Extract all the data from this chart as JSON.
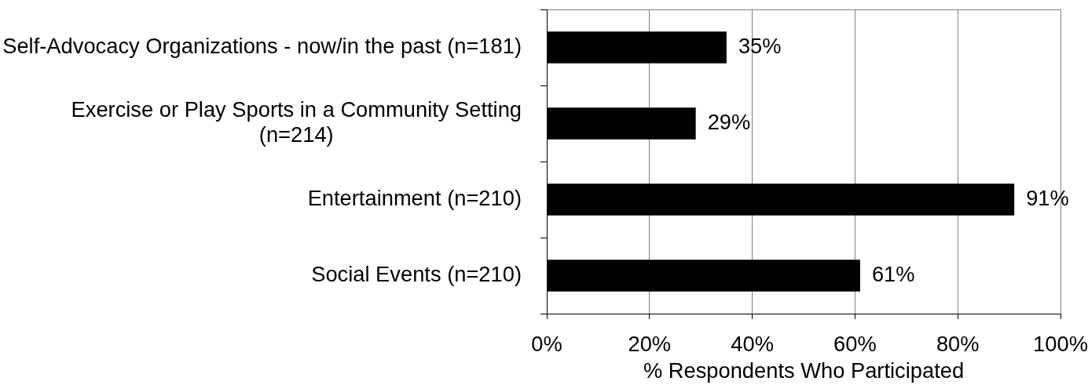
{
  "chart_data": {
    "type": "bar",
    "orientation": "horizontal",
    "categories": [
      "Self-Advocacy Organizations - now/in the past (n=181)",
      "Exercise or Play Sports in a Community Setting (n=214)",
      "Entertainment (n=210)",
      "Social Events (n=210)"
    ],
    "values": [
      35,
      29,
      91,
      61
    ],
    "value_labels": [
      "35%",
      "29%",
      "91%",
      "61%"
    ],
    "color": "#000000",
    "xlabel": "% Respondents Who Participated",
    "xlim": [
      0,
      100
    ],
    "xticks": [
      {
        "value": 0,
        "label": "0%"
      },
      {
        "value": 20,
        "label": "20%"
      },
      {
        "value": 40,
        "label": "40%"
      },
      {
        "value": 60,
        "label": "60%"
      },
      {
        "value": 80,
        "label": "80%"
      },
      {
        "value": 100,
        "label": "100%"
      }
    ],
    "grid": "x"
  }
}
